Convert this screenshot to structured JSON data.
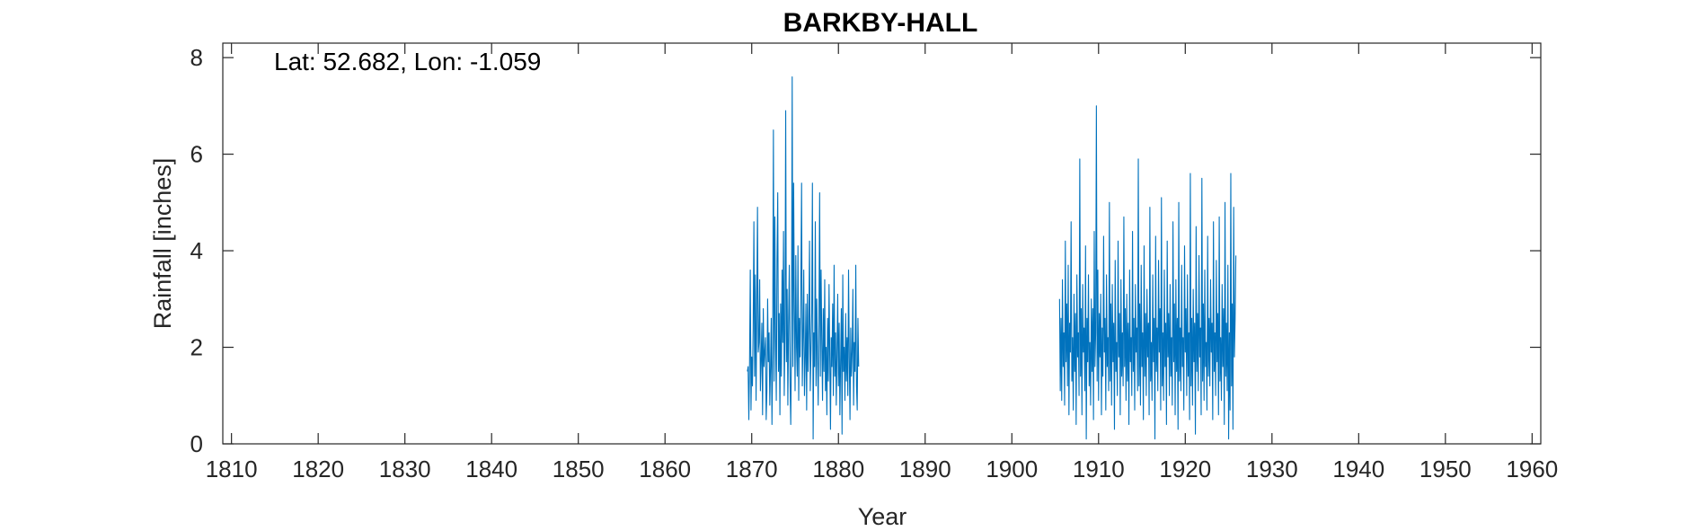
{
  "chart_data": {
    "type": "line",
    "title": "BARKBY-HALL",
    "xlabel": "Year",
    "ylabel": "Rainfall [inches]",
    "annotation": "Lat: 52.682, Lon: -1.059",
    "xlim": [
      1809,
      1961
    ],
    "ylim": [
      0,
      8.3
    ],
    "xticks": [
      1810,
      1820,
      1830,
      1840,
      1850,
      1860,
      1870,
      1880,
      1890,
      1900,
      1910,
      1920,
      1930,
      1940,
      1950,
      1960
    ],
    "yticks": [
      0,
      2,
      4,
      6,
      8
    ],
    "grid": false,
    "series_color": "#0072BD",
    "series": [
      {
        "segments": [
          {
            "start": 1869.5,
            "step": 0.0833333,
            "values": [
              1.5,
              1.6,
              0.5,
              1.7,
              3.6,
              0.7,
              1.8,
              1.2,
              2.4,
              4.6,
              1.4,
              3.5,
              0.9,
              2.8,
              4.9,
              1.9,
              2.1,
              3.4,
              1.1,
              1.7,
              2.5,
              0.6,
              2.8,
              1.6,
              1.9,
              2.2,
              0.5,
              1.1,
              3.0,
              1.7,
              2.3,
              0.8,
              1.6,
              2.6,
              0.4,
              1.9,
              6.5,
              1.3,
              4.7,
              2.2,
              0.9,
              3.8,
              5.2,
              1.5,
              2.7,
              0.6,
              2.9,
              1.4,
              3.6,
              2.1,
              4.4,
              1.0,
              2.3,
              6.9,
              1.7,
              3.2,
              0.8,
              2.5,
              3.7,
              1.3,
              0.4,
              2.1,
              7.6,
              1.6,
              5.4,
              2.8,
              1.1,
              3.9,
              2.0,
              1.4,
              4.1,
              0.9,
              2.6,
              1.8,
              3.3,
              5.4,
              1.2,
              2.2,
              3.6,
              1.0,
              1.7,
              2.9,
              0.7,
              3.1,
              1.5,
              2.4,
              4.2,
              1.1,
              1.9,
              2.7,
              5.4,
              0.1,
              2.3,
              1.6,
              4.6,
              1.2,
              3.0,
              1.8,
              0.8,
              2.5,
              5.2,
              1.4,
              3.6,
              2.1,
              0.9,
              2.8,
              1.5,
              3.4,
              1.1,
              2.0,
              0.6,
              2.6,
              1.3,
              3.3,
              1.8,
              0.3,
              2.2,
              1.6,
              2.9,
              1.0,
              3.7,
              1.4,
              2.3,
              0.8,
              1.9,
              3.1,
              1.2,
              2.5,
              0.6,
              1.7,
              2.8,
              0.2,
              3.5,
              1.5,
              2.0,
              0.9,
              2.7,
              1.3,
              2.2,
              1.0,
              3.6,
              1.8,
              0.5,
              2.4,
              1.4,
              1.9,
              3.2,
              0.8,
              2.1,
              1.5,
              3.7,
              1.2,
              0.7,
              2.6,
              1.6
            ]
          },
          {
            "start": 1905.5,
            "step": 0.0833333,
            "values": [
              3.0,
              1.1,
              2.6,
              0.9,
              3.4,
              1.6,
              2.3,
              0.8,
              4.2,
              1.7,
              2.9,
              1.2,
              3.7,
              0.6,
              2.5,
              1.9,
              4.6,
              1.3,
              2.2,
              0.7,
              3.1,
              1.5,
              2.7,
              0.4,
              3.5,
              1.8,
              2.3,
              1.0,
              5.9,
              1.4,
              2.8,
              0.6,
              3.3,
              1.9,
              2.4,
              1.1,
              4.1,
              0.1,
              2.6,
              1.7,
              3.5,
              1.2,
              2.1,
              0.8,
              3.0,
              1.5,
              2.8,
              0.5,
              4.4,
              1.6,
              2.3,
              7.0,
              1.3,
              3.6,
              0.9,
              2.7,
              1.8,
              3.1,
              0.6,
              2.4,
              1.4,
              4.3,
              1.9,
              2.6,
              0.7,
              3.5,
              1.6,
              2.2,
              1.1,
              5.0,
              1.3,
              2.9,
              0.8,
              3.3,
              1.7,
              2.5,
              0.3,
              3.8,
              1.5,
              2.1,
              1.0,
              4.2,
              1.8,
              2.7,
              0.6,
              3.4,
              1.4,
              2.3,
              1.2,
              4.7,
              1.6,
              2.8,
              0.9,
              3.1,
              1.3,
              2.5,
              0.4,
              3.6,
              1.7,
              2.2,
              1.0,
              4.4,
              1.5,
              2.6,
              0.7,
              3.3,
              1.9,
              2.4,
              1.1,
              5.9,
              1.2,
              2.9,
              0.8,
              3.7,
              1.6,
              2.3,
              0.5,
              4.1,
              1.4,
              2.7,
              1.0,
              3.2,
              1.8,
              2.5,
              0.6,
              4.9,
              1.3,
              2.1,
              0.9,
              3.5,
              1.7,
              2.6,
              0.1,
              4.3,
              1.5,
              2.4,
              1.1,
              3.8,
              1.9,
              2.8,
              0.7,
              5.1,
              1.2,
              2.3,
              0.9,
              3.6,
              1.6,
              2.5,
              0.4,
              4.2,
              1.8,
              2.7,
              1.0,
              3.3,
              1.4,
              2.2,
              0.8,
              4.6,
              1.7,
              2.9,
              0.6,
              3.4,
              1.5,
              2.6,
              0.3,
              5.0,
              1.3,
              2.4,
              1.1,
              3.7,
              1.6,
              2.2,
              0.7,
              4.1,
              1.9,
              2.8,
              1.0,
              3.5,
              1.4,
              2.3,
              0.5,
              5.6,
              1.2,
              2.6,
              0.8,
              3.2,
              1.7,
              2.5,
              0.2,
              4.5,
              1.5,
              2.7,
              1.1,
              3.9,
              1.8,
              2.4,
              0.6,
              5.5,
              1.3,
              2.9,
              0.9,
              3.6,
              1.6,
              2.1,
              0.7,
              4.3,
              1.4,
              2.6,
              1.2,
              3.4,
              1.9,
              2.5,
              0.5,
              4.6,
              1.5,
              2.3,
              1.0,
              3.8,
              1.7,
              2.7,
              0.6,
              4.7,
              1.3,
              2.2,
              0.9,
              3.3,
              1.6,
              2.8,
              0.4,
              5.0,
              1.4,
              2.5,
              1.1,
              3.7,
              0.1,
              2.3,
              0.7,
              5.6,
              1.2,
              2.9,
              0.3,
              4.9,
              1.8,
              2.6,
              3.9
            ]
          }
        ]
      }
    ]
  }
}
